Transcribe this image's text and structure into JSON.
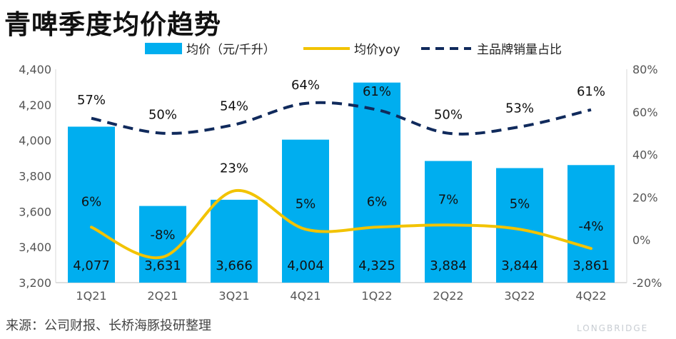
{
  "title": "青啤季度均价趋势",
  "source": "来源：公司财报、长桥海豚投研整理",
  "watermark": "LONGBRIDGE",
  "colors": {
    "bar": "#00aeef",
    "yoy": "#f2c300",
    "share": "#102a5c"
  },
  "chart_data": {
    "type": "bar",
    "categories": [
      "1Q21",
      "2Q21",
      "3Q21",
      "4Q21",
      "1Q22",
      "2Q22",
      "3Q22",
      "4Q22"
    ],
    "left_axis": {
      "ylim": [
        3200,
        4400
      ],
      "ticks": [
        "3,200",
        "3,400",
        "3,600",
        "3,800",
        "4,000",
        "4,200",
        "4,400"
      ]
    },
    "right_axis": {
      "ylim": [
        -20,
        80
      ],
      "ticks": [
        "-20%",
        "0%",
        "20%",
        "40%",
        "60%",
        "80%"
      ]
    },
    "grid": false,
    "legend_position": "top",
    "series": [
      {
        "name": "均价（元/千升）",
        "kind": "bar",
        "axis": "left",
        "values": [
          4077,
          3631,
          3666,
          4004,
          4325,
          3884,
          3844,
          3861
        ],
        "labels": [
          "4,077",
          "3,631",
          "3,666",
          "4,004",
          "4,325",
          "3,884",
          "3,844",
          "3,861"
        ]
      },
      {
        "name": "均价yoy",
        "kind": "line",
        "axis": "right",
        "values": [
          6,
          -8,
          23,
          5,
          6,
          7,
          5,
          -4
        ],
        "labels": [
          "6%",
          "-8%",
          "23%",
          "5%",
          "6%",
          "7%",
          "5%",
          "-4%"
        ]
      },
      {
        "name": "主品牌销量占比",
        "kind": "dashed-line",
        "axis": "right",
        "values": [
          57,
          50,
          54,
          64,
          61,
          50,
          53,
          61
        ],
        "labels": [
          "57%",
          "50%",
          "54%",
          "64%",
          "61%",
          "50%",
          "53%",
          "61%"
        ]
      }
    ]
  }
}
